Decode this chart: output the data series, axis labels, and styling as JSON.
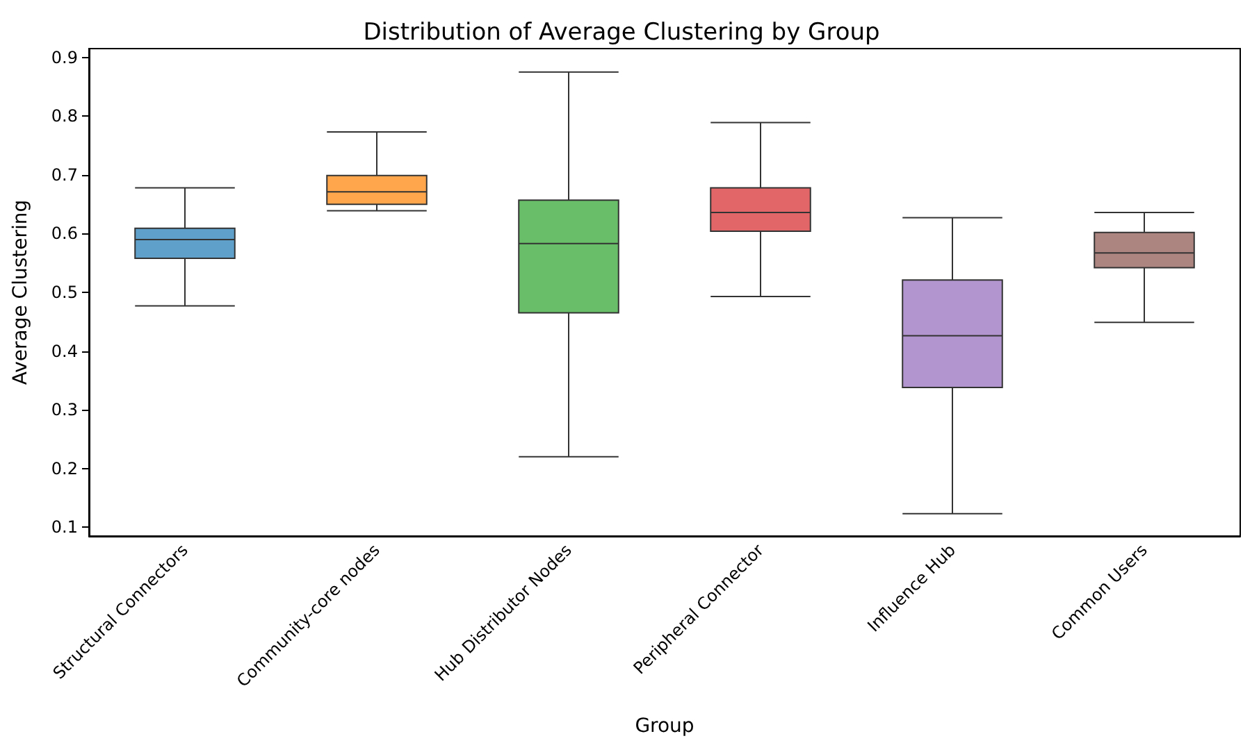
{
  "chart_data": {
    "type": "box",
    "title": "Distribution of Average Clustering by Group",
    "xlabel": "Group",
    "ylabel": "Average Clustering",
    "categories": [
      "Structural Connectors",
      "Community-core nodes",
      "Hub Distributor Nodes",
      "Peripheral Connector",
      "Influence Hub",
      "Common Users"
    ],
    "colors": [
      "#5fa0ca",
      "#ffa64d",
      "#69bf69",
      "#e26667",
      "#b295cf",
      "#ad8580"
    ],
    "boxes": [
      {
        "low": 0.477,
        "q1": 0.558,
        "median": 0.59,
        "q3": 0.609,
        "high": 0.678
      },
      {
        "low": 0.639,
        "q1": 0.65,
        "median": 0.671,
        "q3": 0.699,
        "high": 0.773
      },
      {
        "low": 0.22,
        "q1": 0.465,
        "median": 0.583,
        "q3": 0.657,
        "high": 0.875
      },
      {
        "low": 0.493,
        "q1": 0.604,
        "median": 0.636,
        "q3": 0.678,
        "high": 0.789
      },
      {
        "low": 0.123,
        "q1": 0.338,
        "median": 0.426,
        "q3": 0.521,
        "high": 0.627
      },
      {
        "low": 0.449,
        "q1": 0.542,
        "median": 0.567,
        "q3": 0.602,
        "high": 0.636
      }
    ],
    "ylim": [
      0.085,
      0.915
    ],
    "yticks": [
      0.1,
      0.2,
      0.3,
      0.4,
      0.5,
      0.6,
      0.7,
      0.8,
      0.9
    ],
    "grid": false
  }
}
